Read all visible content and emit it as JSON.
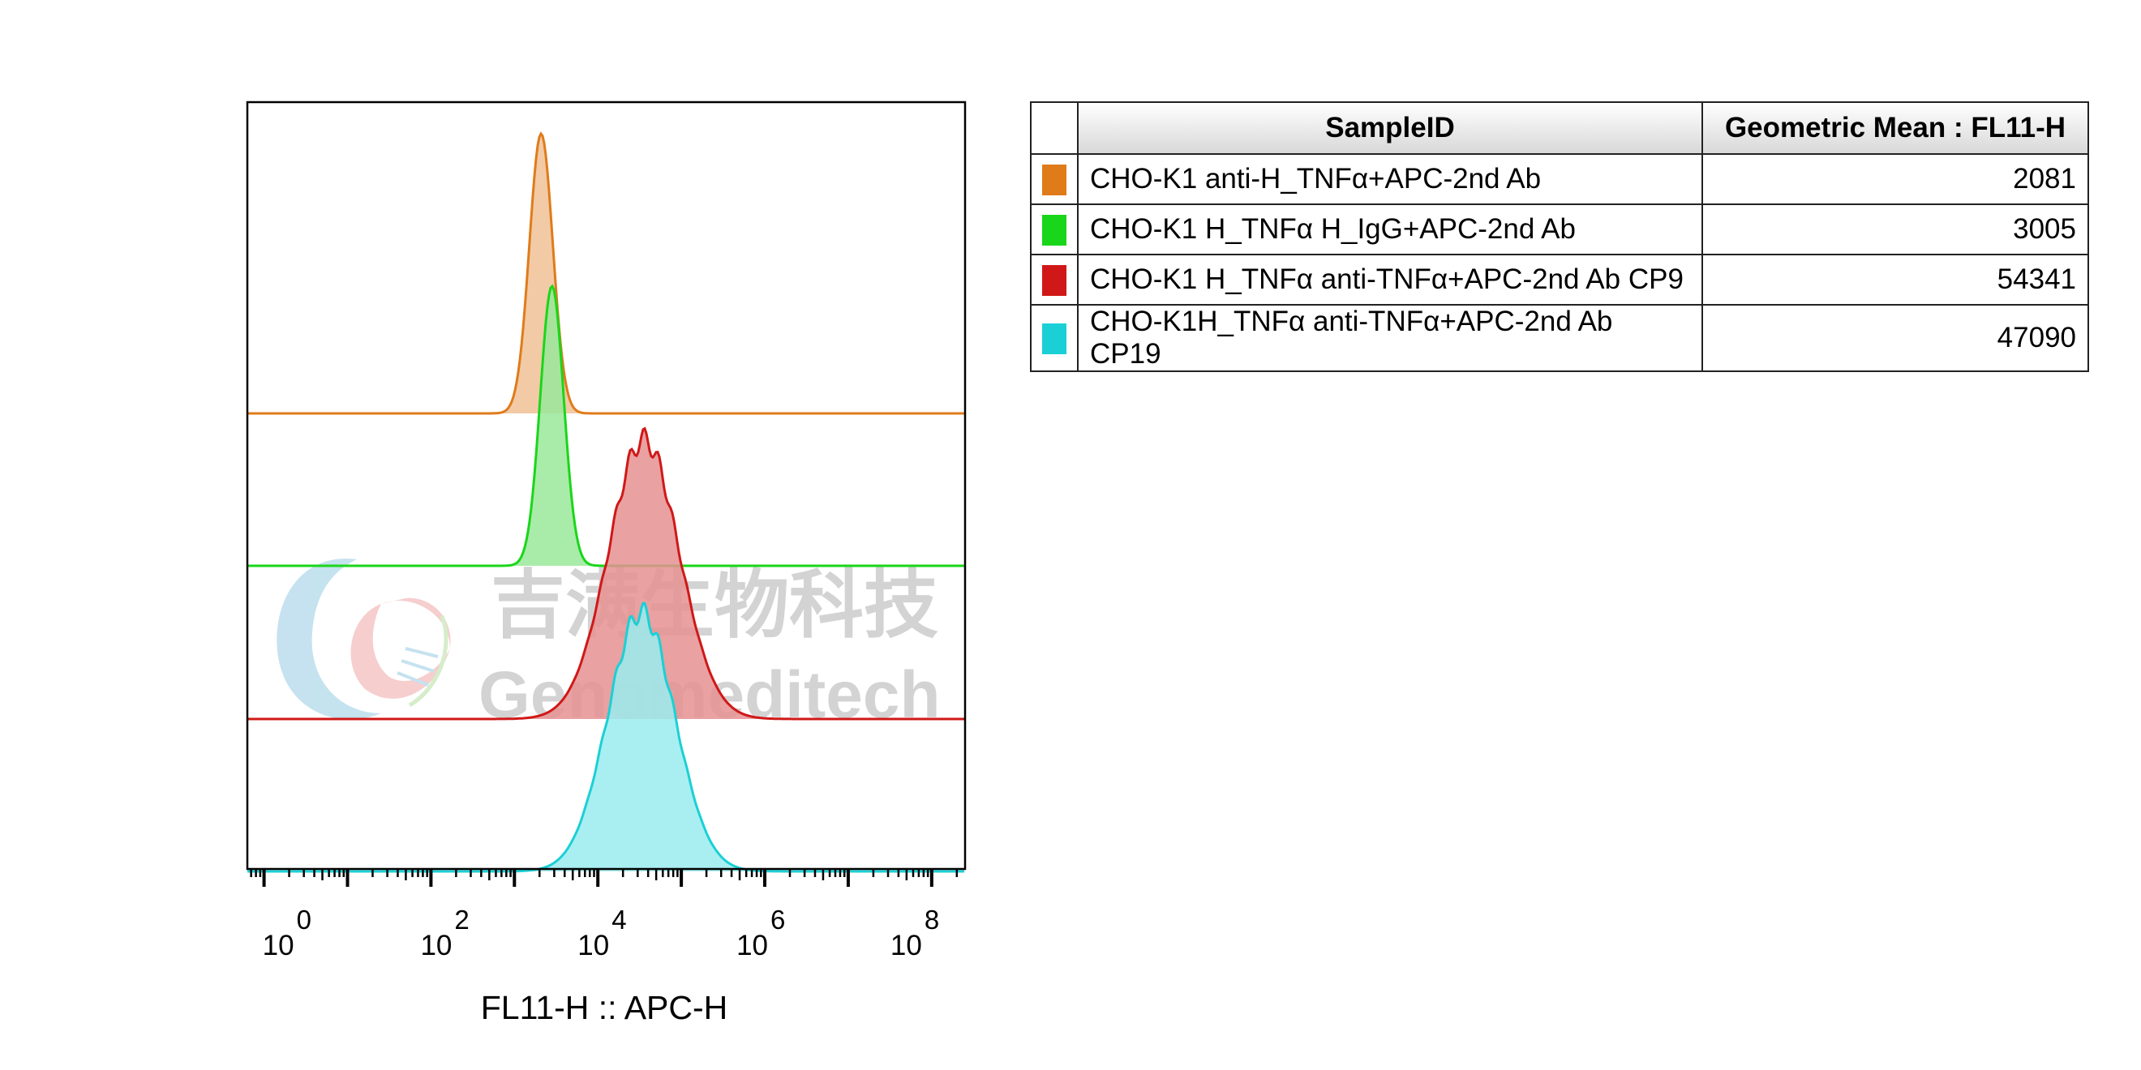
{
  "chart_data": {
    "type": "histogram-overlay",
    "xlabel": "FL11-H :: APC-H",
    "x_scale": "log",
    "xlim_exponent": [
      -0.2,
      8.4
    ],
    "x_ticks": [
      {
        "base": "10",
        "exp": "0",
        "value": 0
      },
      {
        "base": "10",
        "exp": "2",
        "value": 2
      },
      {
        "base": "10",
        "exp": "4",
        "value": 4
      },
      {
        "base": "10",
        "exp": "6",
        "value": 6
      },
      {
        "base": "10",
        "exp": "8",
        "value": 8
      }
    ],
    "series": [
      {
        "sample": "CHO-K1 anti-H_TNFα+APC-2nd Ab",
        "geo_mean": "2081",
        "color": "#e07b1a",
        "fill": "#f0c196",
        "log_center": 3.32,
        "log_sd": 0.14,
        "peak_rel": 1.0
      },
      {
        "sample": "CHO-K1 H_TNFα H_IgG+APC-2nd Ab",
        "geo_mean": "3005",
        "color": "#1ad61a",
        "fill": "#9ae89a",
        "log_center": 3.45,
        "log_sd": 0.14,
        "peak_rel": 1.0
      },
      {
        "sample": "CHO-K1 H_TNFα anti-TNFα+APC-2nd Ab CP9",
        "geo_mean": "54341",
        "color": "#d01818",
        "fill": "#e59090",
        "log_center": 4.55,
        "log_sd": 0.42,
        "peak_rel": 1.0
      },
      {
        "sample": "CHO-K1H_TNFα anti-TNFα+APC-2nd Ab CP19",
        "geo_mean": "47090",
        "color": "#1ad0d6",
        "fill": "#9aecee",
        "log_center": 4.52,
        "log_sd": 0.4,
        "peak_rel": 1.0
      }
    ]
  },
  "table": {
    "header_sample": "SampleID",
    "header_value": "Geometric Mean : FL11-H"
  },
  "watermark": {
    "cn_text": "吉满生物科技",
    "en_text": "Genomeditech"
  }
}
